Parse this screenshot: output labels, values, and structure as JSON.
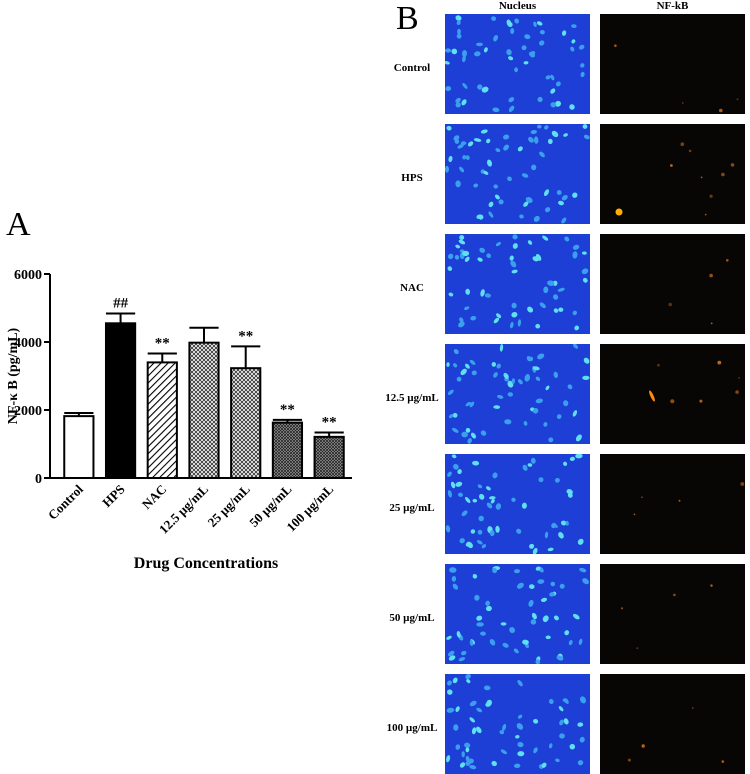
{
  "panel_a_letter": "A",
  "panel_b_letter": "B",
  "chart_data": {
    "type": "bar",
    "categories": [
      "Control",
      "HPS",
      "NAC",
      "12.5 µg/mL",
      "25 µg/mL",
      "50 µg/mL",
      "100 µg/mL"
    ],
    "values": [
      1820,
      4550,
      3400,
      3980,
      3230,
      1630,
      1210
    ],
    "errors": [
      90,
      290,
      260,
      440,
      640,
      80,
      130
    ],
    "annotations": [
      "",
      "##",
      "**",
      "",
      "**",
      "**",
      "**"
    ],
    "fills": [
      "white",
      "black",
      "diagonal-hatch",
      "crosshatch",
      "crosshatch",
      "dense-crosshatch",
      "dense-crosshatch"
    ],
    "title": "",
    "xlabel": "Drug Concentrations",
    "ylabel": "NF-κ B (pg/mL)",
    "ylim": [
      0,
      6000
    ],
    "yticks": [
      0,
      2000,
      4000,
      6000
    ],
    "grid": false
  },
  "micrographs": {
    "columns": [
      "Nucleus",
      "NF-kB"
    ],
    "rows": [
      "Control",
      "HPS",
      "NAC",
      "12.5 µg/mL",
      "25 µg/mL",
      "50 µg/mL",
      "100 µg/mL"
    ],
    "nucleus_color": "#1d3fd6",
    "nfkb_color": "#d9731a"
  }
}
